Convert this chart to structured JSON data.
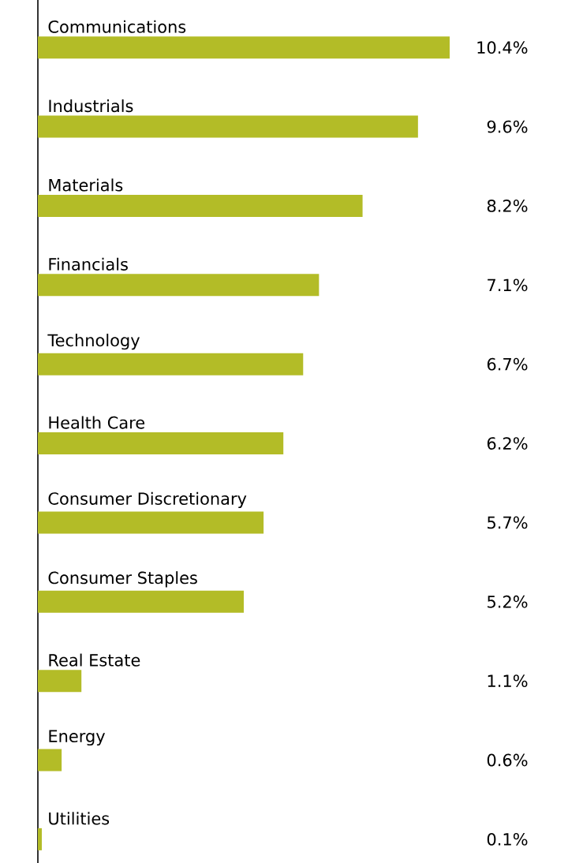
{
  "chart_data": {
    "type": "bar",
    "orientation": "horizontal",
    "color": "#b3bc27",
    "categories": [
      "Communications",
      "Industrials",
      "Materials",
      "Financials",
      "Technology",
      "Health Care",
      "Consumer Discretionary",
      "Consumer Staples",
      "Real Estate",
      "Energy",
      "Utilities"
    ],
    "values": [
      10.4,
      9.6,
      8.2,
      7.1,
      6.7,
      6.2,
      5.7,
      5.2,
      1.1,
      0.6,
      0.1
    ],
    "value_labels": [
      "10.4%",
      "9.6%",
      "8.2%",
      "7.1%",
      "6.7%",
      "6.2%",
      "5.7%",
      "5.2%",
      "1.1%",
      "0.6%",
      "0.1%"
    ]
  }
}
